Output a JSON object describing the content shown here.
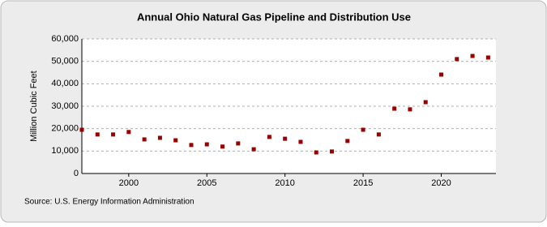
{
  "chart_data": {
    "type": "scatter",
    "title": "Annual Ohio Natural Gas Pipeline and Distribution Use",
    "y_label": "Million Cubic Feet",
    "source": "Source: U.S. Energy Information Administration",
    "color": "#990000",
    "grid": true,
    "x": [
      1997,
      1998,
      1999,
      2000,
      2001,
      2002,
      2003,
      2004,
      2005,
      2006,
      2007,
      2008,
      2009,
      2010,
      2011,
      2012,
      2013,
      2014,
      2015,
      2016,
      2017,
      2018,
      2019,
      2020,
      2021,
      2022,
      2023
    ],
    "values": [
      19500,
      17400,
      17400,
      18500,
      15200,
      15900,
      14800,
      12700,
      13000,
      12000,
      13400,
      10800,
      16300,
      15500,
      14100,
      9400,
      9800,
      14500,
      19500,
      17400,
      28900,
      28600,
      31800,
      44100,
      51000,
      52400,
      51700
    ],
    "xlim": [
      1997,
      2023.5
    ],
    "xticks": [
      2000,
      2005,
      2010,
      2015,
      2020
    ],
    "ylim": [
      0,
      60000
    ],
    "yticks": [
      0,
      {
        "value": 10000,
        "label": "10,000"
      },
      {
        "value": 20000,
        "label": "20,000"
      },
      {
        "value": 30000,
        "label": "30,000"
      },
      {
        "value": 40000,
        "label": "40,000"
      },
      {
        "value": 50000,
        "label": "50,000"
      },
      {
        "value": 60000,
        "label": "60,000"
      }
    ]
  }
}
